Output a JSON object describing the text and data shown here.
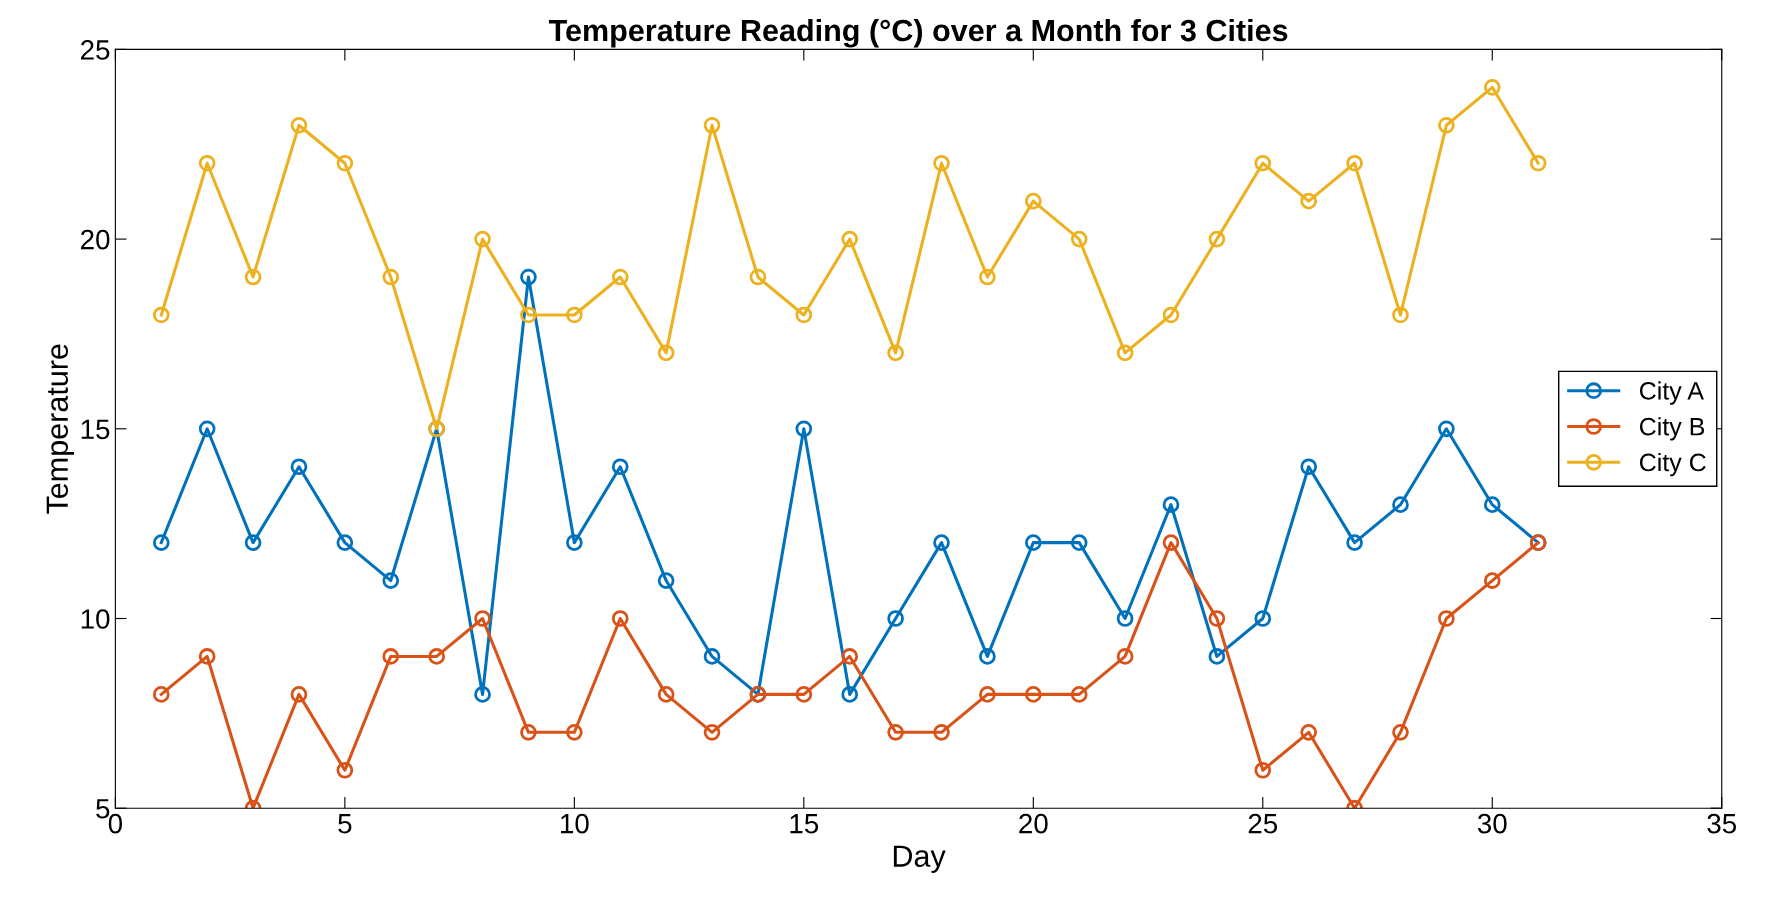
{
  "chart_data": {
    "type": "line",
    "title": "Temperature Reading (°C) over a Month for 3 Cities",
    "xlabel": "Day",
    "ylabel": "Temperature",
    "x": [
      1,
      2,
      3,
      4,
      5,
      6,
      7,
      8,
      9,
      10,
      11,
      12,
      13,
      14,
      15,
      16,
      17,
      18,
      19,
      20,
      21,
      22,
      23,
      24,
      25,
      26,
      27,
      28,
      29,
      30,
      31
    ],
    "series": [
      {
        "name": "City A",
        "color": "#0072bd",
        "values": [
          12,
          15,
          12,
          14,
          12,
          11,
          15,
          8,
          19,
          12,
          14,
          11,
          9,
          8,
          15,
          8,
          10,
          12,
          9,
          12,
          12,
          10,
          13,
          9,
          10,
          14,
          12,
          13,
          15,
          13,
          12
        ]
      },
      {
        "name": "City B",
        "color": "#d95319",
        "values": [
          8,
          9,
          5,
          8,
          6,
          9,
          9,
          10,
          7,
          7,
          10,
          8,
          7,
          8,
          8,
          9,
          7,
          7,
          8,
          8,
          8,
          9,
          12,
          10,
          6,
          7,
          5,
          7,
          10,
          11,
          12
        ]
      },
      {
        "name": "City C",
        "color": "#edb120",
        "values": [
          18,
          22,
          19,
          23,
          22,
          19,
          15,
          20,
          18,
          18,
          19,
          17,
          23,
          19,
          18,
          20,
          17,
          22,
          19,
          21,
          20,
          17,
          18,
          20,
          22,
          21,
          22,
          18,
          23,
          24,
          22
        ]
      }
    ],
    "xlim": [
      0,
      35
    ],
    "xticks": [
      0,
      5,
      10,
      15,
      20,
      25,
      30,
      35
    ],
    "ylim": [
      5,
      25
    ],
    "yticks": [
      5,
      10,
      15,
      20,
      25
    ],
    "grid": false,
    "legend": "right",
    "marker": "circle",
    "line_style": "solid"
  }
}
